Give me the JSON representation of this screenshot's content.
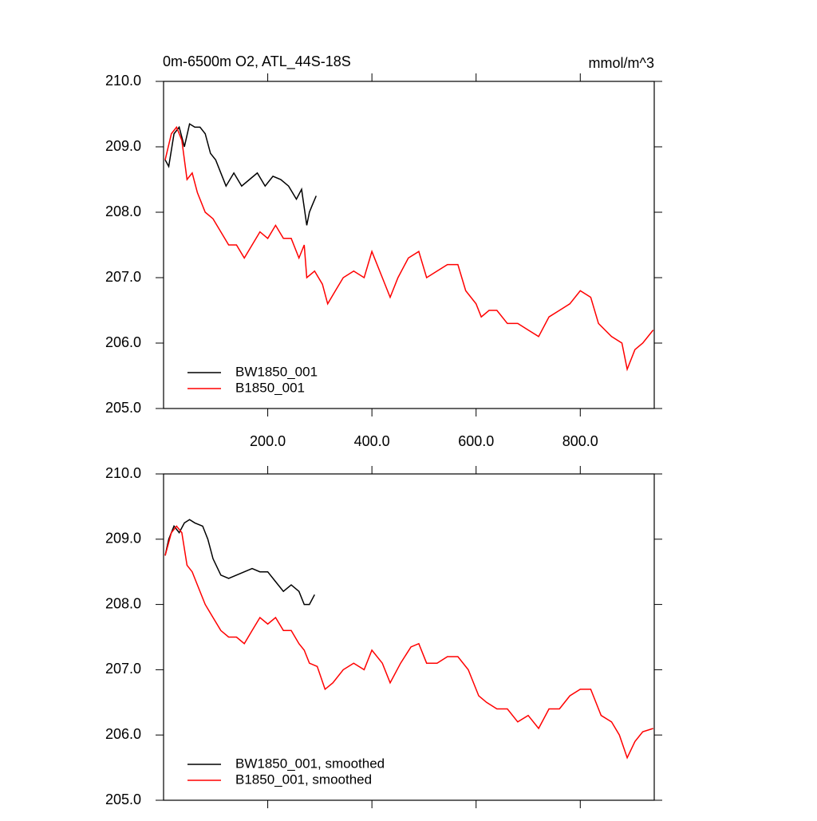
{
  "chart_data": [
    {
      "type": "line",
      "title": "0m-6500m O2, ATL_44S-18S",
      "units": "mmol/m^3",
      "xlim": [
        0,
        942
      ],
      "ylim": [
        205,
        210
      ],
      "xticks": [
        {
          "value": 200,
          "label": "200.0"
        },
        {
          "value": 400,
          "label": "400.0"
        },
        {
          "value": 600,
          "label": "600.0"
        },
        {
          "value": 800,
          "label": "800.0"
        }
      ],
      "yticks": [
        {
          "value": 205,
          "label": "205.0"
        },
        {
          "value": 206,
          "label": "206.0"
        },
        {
          "value": 207,
          "label": "207.0"
        },
        {
          "value": 208,
          "label": "208.0"
        },
        {
          "value": 209,
          "label": "209.0"
        },
        {
          "value": 210,
          "label": "210.0"
        }
      ],
      "legend": "lower left",
      "series": [
        {
          "name": "BW1850_001",
          "color": "#000000",
          "x": [
            3,
            10,
            20,
            30,
            40,
            50,
            60,
            70,
            80,
            90,
            100,
            110,
            120,
            135,
            150,
            165,
            180,
            195,
            210,
            225,
            240,
            255,
            265,
            275,
            280,
            285,
            293
          ],
          "values": [
            208.8,
            208.7,
            209.2,
            209.3,
            209.0,
            209.35,
            209.3,
            209.3,
            209.2,
            208.9,
            208.8,
            208.6,
            208.4,
            208.6,
            208.4,
            208.5,
            208.6,
            208.4,
            208.55,
            208.5,
            208.4,
            208.2,
            208.35,
            207.8,
            208.0,
            208.1,
            208.25
          ]
        },
        {
          "name": "B1850_001",
          "color": "#ff0000",
          "x": [
            3,
            15,
            25,
            35,
            45,
            55,
            65,
            80,
            95,
            110,
            125,
            140,
            155,
            170,
            185,
            200,
            215,
            230,
            245,
            260,
            270,
            275,
            290,
            305,
            315,
            330,
            345,
            365,
            385,
            400,
            420,
            435,
            450,
            470,
            490,
            505,
            525,
            545,
            565,
            580,
            600,
            610,
            625,
            640,
            660,
            680,
            700,
            720,
            740,
            760,
            780,
            800,
            820,
            835,
            860,
            880,
            890,
            905,
            920,
            940
          ],
          "values": [
            208.8,
            209.2,
            209.3,
            209.1,
            208.5,
            208.6,
            208.3,
            208.0,
            207.9,
            207.7,
            207.5,
            207.5,
            207.3,
            207.5,
            207.7,
            207.6,
            207.8,
            207.6,
            207.6,
            207.3,
            207.5,
            207.0,
            207.1,
            206.9,
            206.6,
            206.8,
            207.0,
            207.1,
            207.0,
            207.4,
            207.0,
            206.7,
            207.0,
            207.3,
            207.4,
            207.0,
            207.1,
            207.2,
            207.2,
            206.8,
            206.6,
            206.4,
            206.5,
            206.5,
            206.3,
            206.3,
            206.2,
            206.1,
            206.4,
            206.5,
            206.6,
            206.8,
            206.7,
            206.3,
            206.1,
            206.0,
            205.6,
            205.9,
            206.0,
            206.2
          ]
        }
      ]
    },
    {
      "type": "line",
      "xlim": [
        0,
        942
      ],
      "ylim": [
        205,
        210
      ],
      "xticks": [
        200,
        400,
        600,
        800
      ],
      "yticks": [
        {
          "value": 205,
          "label": "205.0"
        },
        {
          "value": 206,
          "label": "206.0"
        },
        {
          "value": 207,
          "label": "207.0"
        },
        {
          "value": 208,
          "label": "208.0"
        },
        {
          "value": 209,
          "label": "209.0"
        },
        {
          "value": 210,
          "label": "210.0"
        }
      ],
      "legend": "lower left",
      "series": [
        {
          "name": "BW1850_001, smoothed",
          "color": "#000000",
          "x": [
            3,
            10,
            20,
            30,
            40,
            50,
            60,
            75,
            85,
            95,
            110,
            125,
            140,
            155,
            170,
            185,
            200,
            215,
            230,
            245,
            260,
            270,
            280,
            290
          ],
          "values": [
            208.75,
            209.0,
            209.2,
            209.1,
            209.25,
            209.3,
            209.25,
            209.2,
            209.0,
            208.7,
            208.45,
            208.4,
            208.45,
            208.5,
            208.55,
            208.5,
            208.5,
            208.35,
            208.2,
            208.3,
            208.2,
            208.0,
            208.0,
            208.15
          ]
        },
        {
          "name": "B1850_001, smoothed",
          "color": "#ff0000",
          "x": [
            3,
            15,
            25,
            35,
            45,
            55,
            65,
            80,
            95,
            110,
            125,
            140,
            155,
            170,
            185,
            200,
            215,
            230,
            245,
            260,
            270,
            280,
            295,
            310,
            325,
            345,
            365,
            385,
            400,
            420,
            435,
            455,
            475,
            490,
            505,
            525,
            545,
            565,
            585,
            605,
            620,
            640,
            660,
            680,
            700,
            720,
            740,
            760,
            780,
            800,
            820,
            840,
            860,
            875,
            890,
            905,
            920,
            940
          ],
          "values": [
            208.75,
            209.1,
            209.2,
            209.1,
            208.6,
            208.5,
            208.3,
            208.0,
            207.8,
            207.6,
            207.5,
            207.5,
            207.4,
            207.6,
            207.8,
            207.7,
            207.8,
            207.6,
            207.6,
            207.4,
            207.3,
            207.1,
            207.05,
            206.7,
            206.8,
            207.0,
            207.1,
            207.0,
            207.3,
            207.1,
            206.8,
            207.1,
            207.35,
            207.4,
            207.1,
            207.1,
            207.2,
            207.2,
            207.0,
            206.6,
            206.5,
            206.4,
            206.4,
            206.2,
            206.3,
            206.1,
            206.4,
            206.4,
            206.6,
            206.7,
            206.7,
            206.3,
            206.2,
            206.0,
            205.65,
            205.9,
            206.05,
            206.1
          ]
        }
      ]
    }
  ]
}
